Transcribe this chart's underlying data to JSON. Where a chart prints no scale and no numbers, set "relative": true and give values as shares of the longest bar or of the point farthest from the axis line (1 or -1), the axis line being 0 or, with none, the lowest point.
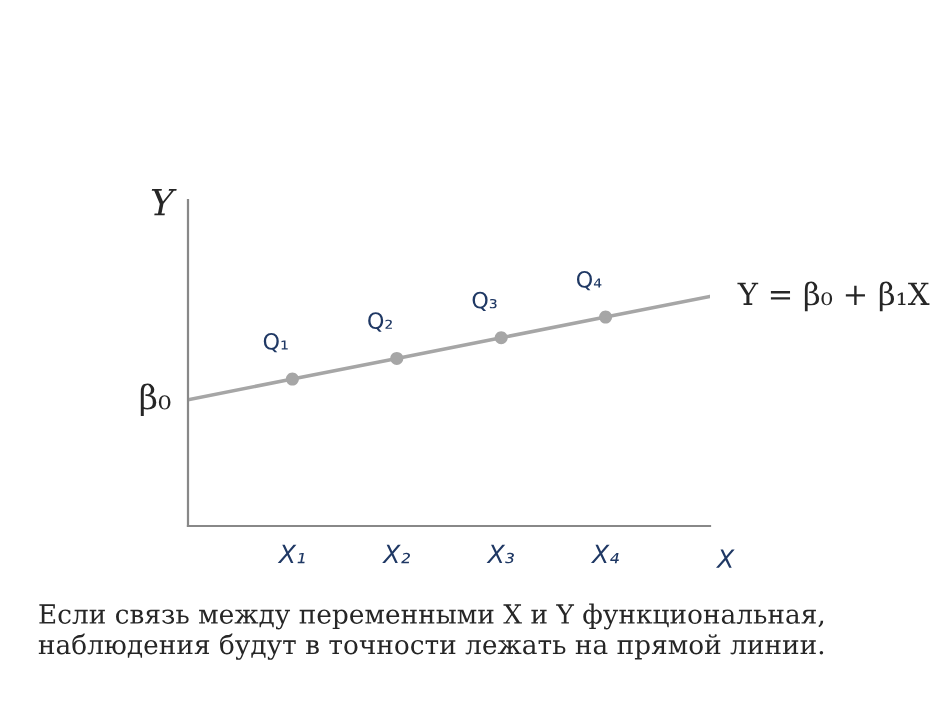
{
  "chart_data": {
    "type": "scatter",
    "relative": true,
    "xlabel": "X",
    "ylabel": "Y",
    "categories": [
      null,
      "X₁",
      "X₂",
      "X₃",
      "X₄",
      null
    ],
    "tick_labels": "x",
    "grid": false,
    "marker": "circle",
    "series": [
      {
        "type": "line",
        "color": "#a6a6a6",
        "values": [
          0.55,
          0.64,
          0.73,
          0.82,
          0.91,
          1.0
        ],
        "line_style": "solid",
        "marker": "none"
      },
      {
        "color": "#a6a6a6",
        "values": [
          null,
          0.64,
          0.73,
          0.82,
          0.91,
          null
        ]
      }
    ],
    "annotations": [
      "β₀",
      "Y = β₀ + β₁X",
      "Если связь между переменными X и Y функциональная, наблюдения будут в точности лежать на прямой линии.",
      {
        "text": "Q₁",
        "x": "X₁",
        "y": 0.64
      },
      {
        "text": "Q₂",
        "x": "X₂",
        "y": 0.73
      },
      {
        "text": "Q₃",
        "x": "X₃",
        "y": 0.82
      },
      {
        "text": "Q₄",
        "x": "X₄",
        "y": 0.91
      }
    ]
  }
}
